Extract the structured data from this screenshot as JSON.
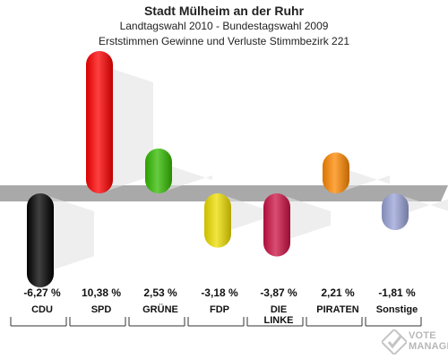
{
  "header": {
    "title": "Stadt Mülheim an der Ruhr",
    "subtitle1": "Landtagswahl 2010 - Bundestagswahl 2009",
    "subtitle2": "Erststimmen Gewinne und Verluste Stimmbezirk 221"
  },
  "watermark": {
    "line1": "VOTE",
    "line2": "MANAGER"
  },
  "chart_data": {
    "type": "bar",
    "title": "Stadt Mülheim an der Ruhr",
    "categories": [
      "CDU",
      "SPD",
      "GRÜNE",
      "FDP",
      "DIE LINKE",
      "PIRATEN",
      "Sonstige"
    ],
    "values": [
      -6.27,
      10.38,
      2.53,
      -3.18,
      -3.87,
      2.21,
      -1.81
    ],
    "value_labels": [
      "-6,27 %",
      "10,38 %",
      "2,53 %",
      "-3,18 %",
      "-3,87 %",
      "2,21 %",
      "-1,81 %"
    ],
    "colors": [
      "#000000",
      "#ff0000",
      "#33bb00",
      "#eedd00",
      "#cc1144",
      "#ff8800",
      "#99a2d6"
    ],
    "unit": "%",
    "ylim": [
      -6.27,
      10.38
    ],
    "grid": false,
    "legend": "none"
  }
}
